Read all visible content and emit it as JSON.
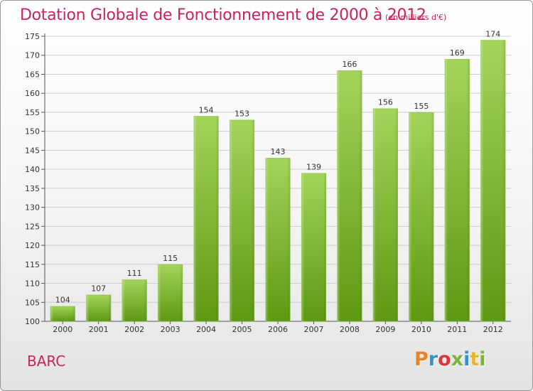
{
  "header": {
    "title": "Dotation Globale de Fonctionnement de 2000 à 2012",
    "unit": "(en milliers d'€)"
  },
  "footer": {
    "commune": "BARC",
    "logo_text": "Proxiti"
  },
  "colors": {
    "title": "#c8245a",
    "bar_light": "#9fd155",
    "bar_dark": "#5f9a14",
    "grid": "#c9c9c9",
    "logo_letters": [
      "#e8852c",
      "#3a8fd0",
      "#d9363e",
      "#7ab43c",
      "#3a8fd0",
      "#e8b62c",
      "#7ab43c"
    ]
  },
  "chart_data": {
    "type": "bar",
    "title": "Dotation Globale de Fonctionnement de 2000 à 2012",
    "subtitle": "(en milliers d'€)",
    "categories": [
      "2000",
      "2001",
      "2002",
      "2003",
      "2004",
      "2005",
      "2006",
      "2007",
      "2008",
      "2009",
      "2010",
      "2011",
      "2012"
    ],
    "values": [
      104,
      107,
      111,
      115,
      154,
      153,
      143,
      139,
      166,
      156,
      155,
      169,
      174
    ],
    "ylim": [
      100,
      175
    ],
    "yticks": [
      100,
      105,
      110,
      115,
      120,
      125,
      130,
      135,
      140,
      145,
      150,
      155,
      160,
      165,
      170,
      175
    ],
    "grid": true,
    "xlabel": "",
    "ylabel": ""
  }
}
